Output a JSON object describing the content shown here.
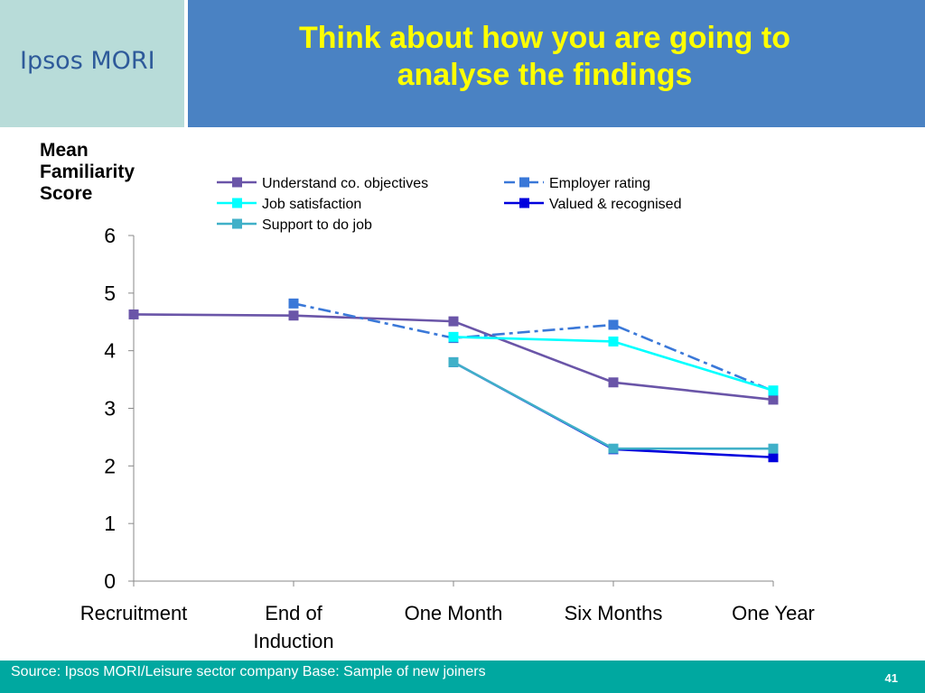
{
  "brand": {
    "logo_text": "Ipsos MORI"
  },
  "slide": {
    "title_line1": "Think about how you are going to",
    "title_line2": "analyse the findings",
    "source": "Source: Ipsos MORI/Leisure sector company  Base: Sample of new joiners",
    "page_number": "41"
  },
  "colors": {
    "header_band": "#4a82c3",
    "logo_panel": "#b8dcd9",
    "title": "#ffff00",
    "footer": "#00a8a0"
  },
  "chart_data": {
    "type": "line",
    "ylabel": "Mean Familiarity Score",
    "ylabel_lines": [
      "Mean",
      "Familiarity",
      "Score"
    ],
    "xlabel": "",
    "categories": [
      "Recruitment",
      "End of Induction",
      "One Month",
      "Six Months",
      "One Year"
    ],
    "category_lines": [
      [
        "Recruitment"
      ],
      [
        "End of",
        "Induction"
      ],
      [
        "One Month"
      ],
      [
        "Six Months"
      ],
      [
        "One Year"
      ]
    ],
    "ylim": [
      0,
      6
    ],
    "yticks": [
      0,
      1,
      2,
      3,
      4,
      5,
      6
    ],
    "grid": false,
    "legend_position": "top",
    "series": [
      {
        "name": "Understand co. objectives",
        "color": "#6a55a8",
        "dash": "solid",
        "values": [
          4.63,
          4.61,
          4.51,
          3.45,
          3.15
        ]
      },
      {
        "name": "Employer rating",
        "color": "#3a78d8",
        "dash": "dashdot",
        "values": [
          null,
          4.82,
          4.22,
          4.45,
          3.3
        ]
      },
      {
        "name": "Job satisfaction",
        "color": "#00ffff",
        "dash": "solid",
        "values": [
          null,
          null,
          4.24,
          4.16,
          3.31
        ]
      },
      {
        "name": "Valued & recognised",
        "color": "#0000dd",
        "dash": "solid",
        "values": [
          null,
          null,
          3.8,
          2.29,
          2.15
        ]
      },
      {
        "name": "Support to do job",
        "color": "#40b0c8",
        "dash": "solid",
        "values": [
          null,
          null,
          3.8,
          2.3,
          2.3
        ]
      }
    ]
  }
}
